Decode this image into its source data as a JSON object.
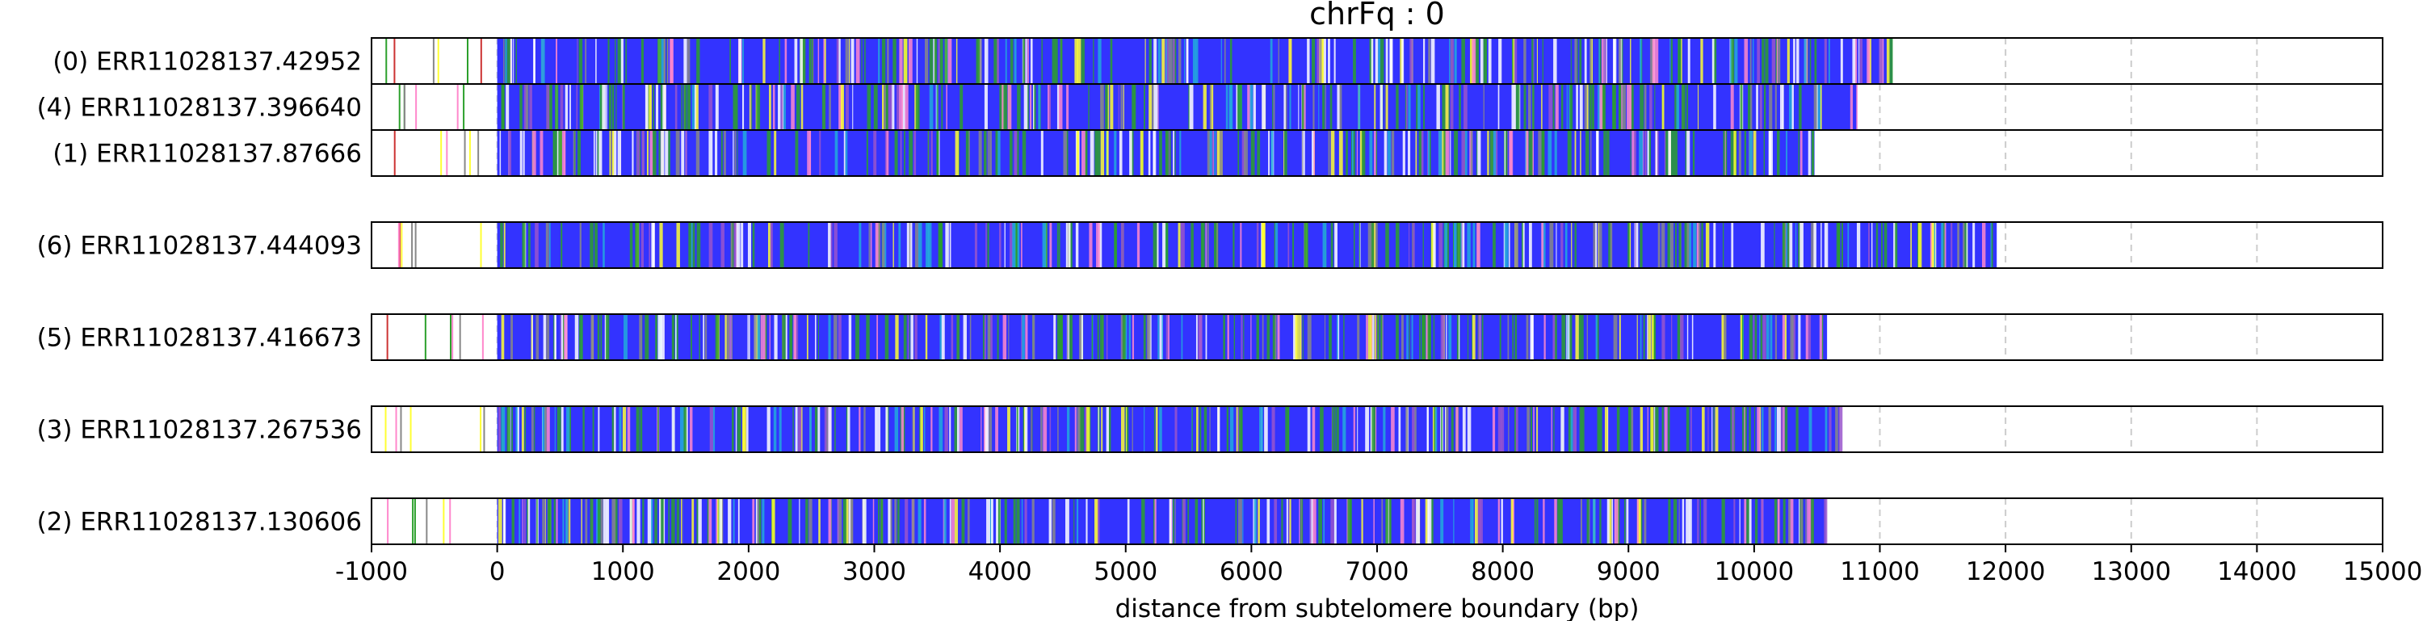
{
  "chart_data": {
    "type": "bar",
    "title": "chrFq : 0",
    "xlabel": "distance from subtelomere boundary (bp)",
    "xlim": [
      -1000,
      15000
    ],
    "xticks": [
      -1000,
      0,
      1000,
      2000,
      3000,
      4000,
      5000,
      6000,
      7000,
      8000,
      9000,
      10000,
      11000,
      12000,
      13000,
      14000,
      15000
    ],
    "tick_labels": [
      "-1000",
      "0",
      "1000",
      "2000",
      "3000",
      "4000",
      "5000",
      "6000",
      "7000",
      "8000",
      "9000",
      "10000",
      "11000",
      "12000",
      "13000",
      "14000",
      "15000"
    ],
    "grid": "vertical dashed lines at x ticks",
    "base_color": "#3333ff",
    "colors": {
      "blue": "#3333ff",
      "green": "#2ca02c",
      "white": "#ffffff",
      "cyan": "#22aadd",
      "yellow": "#ffff33",
      "pink": "#ff88cc",
      "red": "#cc3333",
      "purple": "#9955cc",
      "gray": "#888888"
    },
    "groups": [
      [
        0,
        1,
        2
      ],
      [
        3
      ],
      [
        4
      ],
      [
        5
      ],
      [
        6
      ]
    ],
    "series": [
      {
        "name": "(0) ERR11028137.42952",
        "end": 11100
      },
      {
        "name": "(4) ERR11028137.396640",
        "end": 10820
      },
      {
        "name": "(1) ERR11028137.87666",
        "end": 10480
      },
      {
        "name": "(6) ERR11028137.444093",
        "end": 11930
      },
      {
        "name": "(5) ERR11028137.416673",
        "end": 10580
      },
      {
        "name": "(3) ERR11028137.267536",
        "end": 10680
      },
      {
        "name": "(2) ERR11028137.130606",
        "end": 10570
      }
    ]
  }
}
